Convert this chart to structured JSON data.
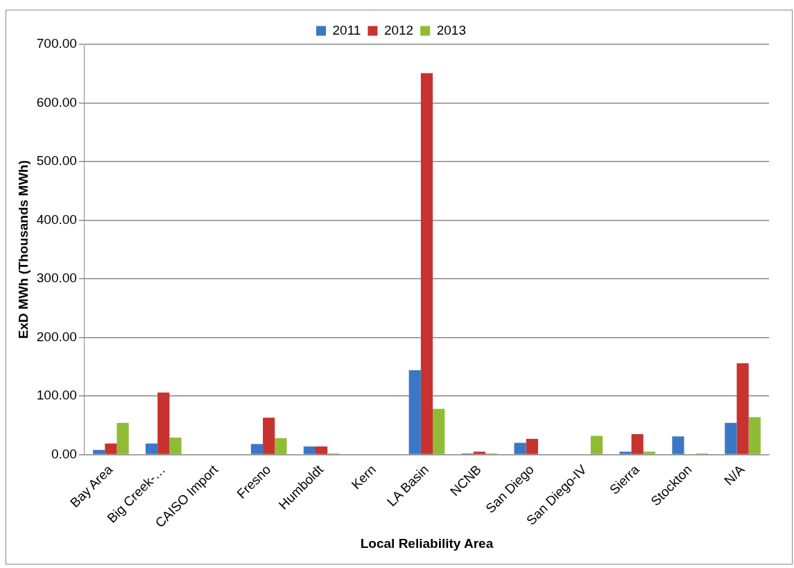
{
  "chart_data": {
    "type": "bar",
    "xlabel": "Local Reliability Area",
    "ylabel": "ExD MWh (Thousands MWh)",
    "categories": [
      "Bay Area",
      "Big Creek-…",
      "CAISO Import",
      "Fresno",
      "Humboldt",
      "Kern",
      "LA Basin",
      "NCNB",
      "San Diego",
      "San Diego-IV",
      "Sierra",
      "Stockton",
      "N/A"
    ],
    "series": [
      {
        "name": "2011",
        "color": "#3a78c6",
        "values": [
          8,
          19,
          0,
          18,
          14,
          0,
          144,
          2,
          20,
          0,
          5,
          31,
          54
        ]
      },
      {
        "name": "2012",
        "color": "#c8322f",
        "values": [
          19,
          106,
          0,
          63,
          14,
          0,
          651,
          5,
          27,
          0,
          35,
          0,
          156
        ]
      },
      {
        "name": "2013",
        "color": "#8fbc35",
        "values": [
          54,
          29,
          0,
          28,
          2,
          0,
          78,
          2,
          0,
          32,
          5,
          2,
          64
        ]
      }
    ],
    "ylim": [
      0,
      700
    ],
    "yticks": [
      {
        "value": 0,
        "label": "0.00"
      },
      {
        "value": 100,
        "label": "100.00"
      },
      {
        "value": 200,
        "label": "200.00"
      },
      {
        "value": 300,
        "label": "300.00"
      },
      {
        "value": 400,
        "label": "400.00"
      },
      {
        "value": 500,
        "label": "500.00"
      },
      {
        "value": 600,
        "label": "600.00"
      },
      {
        "value": 700,
        "label": "700.00"
      }
    ],
    "grid": "y",
    "legend": "top"
  }
}
